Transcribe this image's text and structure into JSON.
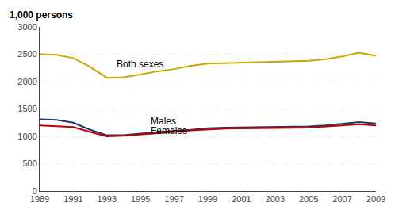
{
  "chart_data": {
    "type": "line",
    "ylabel": "1,000 persons",
    "x": [
      1989,
      1990,
      1991,
      1992,
      1993,
      1994,
      1995,
      1996,
      1997,
      1998,
      1999,
      2000,
      2001,
      2002,
      2003,
      2004,
      2005,
      2006,
      2007,
      2008,
      2009
    ],
    "series": [
      {
        "name": "Both sexes",
        "color": "#c8a800",
        "values": [
          2500,
          2490,
          2430,
          2270,
          2070,
          2080,
          2130,
          2190,
          2230,
          2290,
          2330,
          2340,
          2350,
          2350,
          2360,
          2370,
          2380,
          2410,
          2460,
          2530,
          2470
        ]
      },
      {
        "name": "Males",
        "color": "#1f3864",
        "values": [
          1310,
          1300,
          1250,
          1120,
          1020,
          1020,
          1050,
          1080,
          1100,
          1120,
          1150,
          1160,
          1165,
          1165,
          1170,
          1175,
          1180,
          1200,
          1230,
          1260,
          1235
        ]
      },
      {
        "name": "Females",
        "color": "#c00000",
        "values": [
          1200,
          1190,
          1170,
          1080,
          1000,
          1010,
          1030,
          1060,
          1080,
          1110,
          1130,
          1140,
          1145,
          1145,
          1150,
          1155,
          1160,
          1180,
          1200,
          1220,
          1200
        ]
      }
    ],
    "annotations": [
      {
        "text": "Both sexes",
        "x": 1993.5,
        "y": 2190
      },
      {
        "text": "Males",
        "x": 1995.5,
        "y": 1145
      },
      {
        "text": "Females",
        "x": 1995.5,
        "y": 975
      }
    ],
    "xlim": [
      1989,
      2009
    ],
    "xticks": [
      1989,
      1991,
      1993,
      1995,
      1997,
      1999,
      2001,
      2003,
      2005,
      2007,
      2009
    ],
    "ylim": [
      0,
      3000
    ],
    "yticks": [
      0,
      500,
      1000,
      1500,
      2000,
      2500,
      3000
    ],
    "grid": true
  }
}
